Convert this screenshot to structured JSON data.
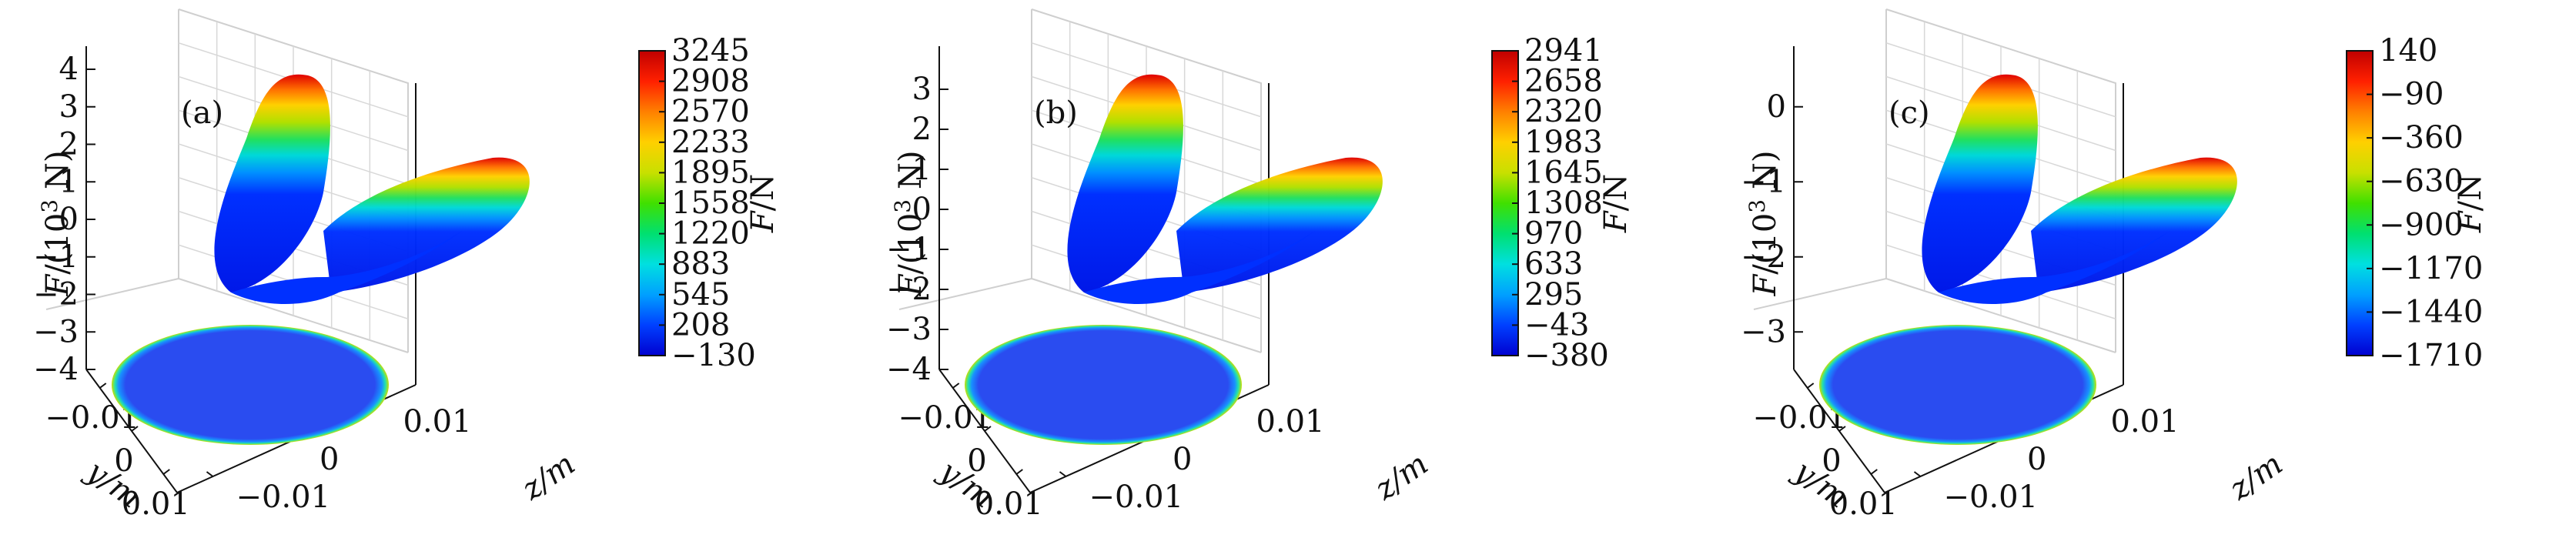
{
  "chart_data": [
    {
      "type": "surface3d",
      "panel_label": "(a)",
      "zlabel_main": "F/(10",
      "zlabel_sup": "3",
      "zlabel_tail": " N)",
      "ylabel": "y/m",
      "xlabel": "z/m",
      "z_ticks": [
        "4",
        "3",
        "2",
        "1",
        "0",
        "−1",
        "−2",
        "−3",
        "−4"
      ],
      "y_ticks": [
        "−0.01",
        "0",
        "0.01"
      ],
      "x_ticks": [
        "0.01",
        "0",
        "−0.01"
      ],
      "zlim": [
        -4,
        4
      ],
      "colorbar_label": "F/N",
      "colorbar_ticks": [
        "3245",
        "2908",
        "2570",
        "2233",
        "1895",
        "1558",
        "1220",
        "883",
        "545",
        "208",
        "−130"
      ],
      "colorbar_range": [
        -130,
        3245
      ],
      "surface_peak_1000N": 3.245,
      "surface_min_1000N": -0.13
    },
    {
      "type": "surface3d",
      "panel_label": "(b)",
      "zlabel_main": "F/(10",
      "zlabel_sup": "3",
      "zlabel_tail": " N)",
      "ylabel": "y/m",
      "xlabel": "z/m",
      "z_ticks": [
        "3",
        "2",
        "1",
        "0",
        "−1",
        "−2",
        "−3",
        "−4"
      ],
      "y_ticks": [
        "−0.01",
        "0",
        "0.01"
      ],
      "x_ticks": [
        "0.01",
        "0",
        "−0.01"
      ],
      "zlim": [
        -4,
        3.5
      ],
      "colorbar_label": "F/N",
      "colorbar_ticks": [
        "2941",
        "2658",
        "2320",
        "1983",
        "1645",
        "1308",
        "970",
        "633",
        "295",
        "−43",
        "−380"
      ],
      "colorbar_range": [
        -380,
        2941
      ],
      "surface_peak_1000N": 2.941,
      "surface_min_1000N": -0.38
    },
    {
      "type": "surface3d",
      "panel_label": "(c)",
      "zlabel_main": "F/(10",
      "zlabel_sup": "3",
      "zlabel_tail": " N)",
      "ylabel": "y/m",
      "xlabel": "z/m",
      "z_ticks": [
        "0",
        "−1",
        "−2",
        "−3"
      ],
      "y_ticks": [
        "−0.01",
        "0",
        "0.01"
      ],
      "x_ticks": [
        "0.01",
        "0",
        "−0.01"
      ],
      "zlim": [
        -3.5,
        0.5
      ],
      "colorbar_label": "F/N",
      "colorbar_ticks": [
        "140",
        "−90",
        "−360",
        "−630",
        "−900",
        "−1170",
        "−1440",
        "−1710"
      ],
      "colorbar_range": [
        -1710,
        140
      ],
      "surface_peak_1000N": 0.14,
      "surface_min_1000N": -1.71
    }
  ],
  "colors": {
    "colormap": [
      "#0000d0",
      "#0040ff",
      "#00a0ff",
      "#00e0e0",
      "#00e070",
      "#40e000",
      "#c8e000",
      "#ffd000",
      "#ff8000",
      "#ff2000",
      "#c00000"
    ],
    "axis": "#111111",
    "grid": "#d8d8d8"
  }
}
